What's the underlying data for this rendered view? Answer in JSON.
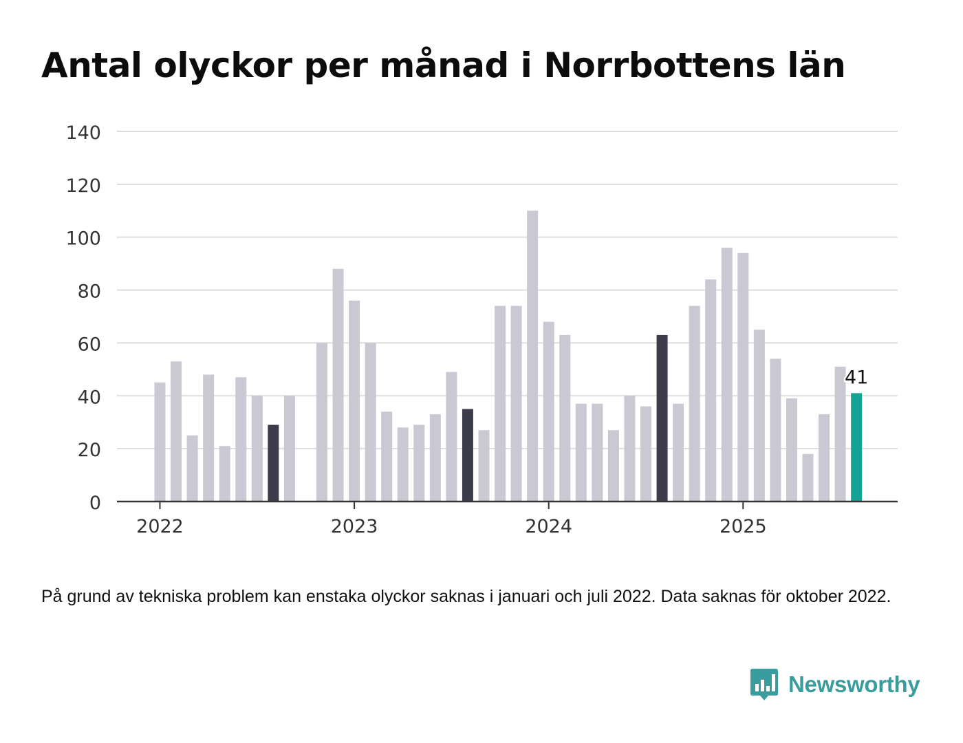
{
  "title": "Antal olyckor per månad i Norrbottens län",
  "note": "På grund av tekniska problem kan enstaka olyckor saknas i januari och juli 2022. Data saknas för oktober 2022.",
  "brand": {
    "name": "Newsworthy",
    "icon": "newsworthy-logo-icon"
  },
  "colors": {
    "default_bar": "#c9c8d3",
    "august_bar": "#3d3c4b",
    "latest_bar": "#12a394",
    "gridline": "#dddddd",
    "axis": "#333333",
    "brand": "#3a9d9d"
  },
  "chart_data": {
    "type": "bar",
    "ylim": [
      0,
      140
    ],
    "yticks": [
      "0",
      "20",
      "40",
      "60",
      "80",
      "100",
      "120",
      "140"
    ],
    "xtick_labels": [
      "2022",
      "2023",
      "2024",
      "2025"
    ],
    "grid": true,
    "highlight_label": "41",
    "categories": [
      "2022-01",
      "2022-02",
      "2022-03",
      "2022-04",
      "2022-05",
      "2022-06",
      "2022-07",
      "2022-08",
      "2022-09",
      "2022-10",
      "2022-11",
      "2022-12",
      "2023-01",
      "2023-02",
      "2023-03",
      "2023-04",
      "2023-05",
      "2023-06",
      "2023-07",
      "2023-08",
      "2023-09",
      "2023-10",
      "2023-11",
      "2023-12",
      "2024-01",
      "2024-02",
      "2024-03",
      "2024-04",
      "2024-05",
      "2024-06",
      "2024-07",
      "2024-08",
      "2024-09",
      "2024-10",
      "2024-11",
      "2024-12",
      "2025-01",
      "2025-02",
      "2025-03",
      "2025-04",
      "2025-05",
      "2025-06",
      "2025-07",
      "2025-08"
    ],
    "values": [
      45,
      53,
      25,
      48,
      21,
      47,
      40,
      29,
      40,
      null,
      60,
      88,
      76,
      60,
      34,
      28,
      29,
      33,
      49,
      35,
      27,
      74,
      74,
      110,
      68,
      63,
      37,
      37,
      27,
      40,
      36,
      63,
      37,
      74,
      84,
      96,
      94,
      65,
      54,
      39,
      18,
      33,
      51,
      41
    ],
    "bar_color_groups": {
      "august": [
        "2022-08",
        "2023-08",
        "2024-08"
      ],
      "latest": [
        "2025-08"
      ]
    }
  }
}
